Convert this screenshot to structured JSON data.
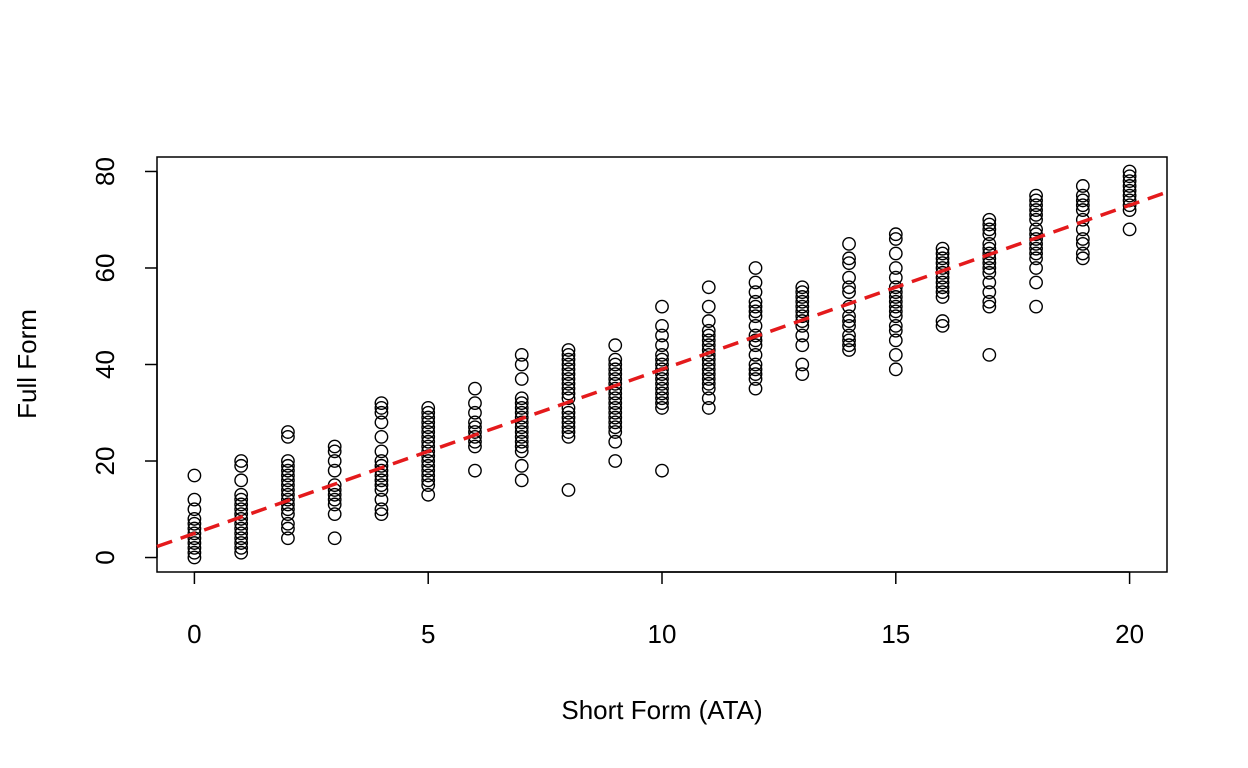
{
  "chart_data": {
    "type": "scatter",
    "title": "",
    "xlabel": "Short Form (ATA)",
    "ylabel": "Full Form",
    "xlim": [
      -0.8,
      20.8
    ],
    "ylim": [
      -3,
      83
    ],
    "x_ticks": [
      0,
      5,
      10,
      15,
      20
    ],
    "y_ticks": [
      0,
      20,
      40,
      60,
      80
    ],
    "x_tick_labels": [
      "0",
      "5",
      "10",
      "15",
      "20"
    ],
    "y_tick_labels": [
      "0",
      "20",
      "40",
      "60",
      "80"
    ],
    "grid": false,
    "legend": "none",
    "colors": {
      "points": "#000000",
      "fit_line": "#e41a1c",
      "frame": "#000000"
    },
    "fit_line": {
      "style": "dashed",
      "intercept": 5.0,
      "slope": 3.4
    },
    "series": [
      {
        "points": [
          [
            0,
            0
          ],
          [
            0,
            1
          ],
          [
            0,
            2
          ],
          [
            0,
            3
          ],
          [
            0,
            4
          ],
          [
            0,
            5
          ],
          [
            0,
            6
          ],
          [
            0,
            7
          ],
          [
            0,
            8
          ],
          [
            0,
            10
          ],
          [
            0,
            12
          ],
          [
            0,
            17
          ],
          [
            1,
            1
          ],
          [
            1,
            2
          ],
          [
            1,
            3
          ],
          [
            1,
            4
          ],
          [
            1,
            5
          ],
          [
            1,
            6
          ],
          [
            1,
            7
          ],
          [
            1,
            8
          ],
          [
            1,
            9
          ],
          [
            1,
            10
          ],
          [
            1,
            11
          ],
          [
            1,
            12
          ],
          [
            1,
            13
          ],
          [
            1,
            16
          ],
          [
            1,
            19
          ],
          [
            1,
            20
          ],
          [
            2,
            4
          ],
          [
            2,
            6
          ],
          [
            2,
            7
          ],
          [
            2,
            9
          ],
          [
            2,
            10
          ],
          [
            2,
            11
          ],
          [
            2,
            12
          ],
          [
            2,
            13
          ],
          [
            2,
            14
          ],
          [
            2,
            15
          ],
          [
            2,
            16
          ],
          [
            2,
            17
          ],
          [
            2,
            18
          ],
          [
            2,
            19
          ],
          [
            2,
            20
          ],
          [
            2,
            25
          ],
          [
            2,
            26
          ],
          [
            3,
            4
          ],
          [
            3,
            9
          ],
          [
            3,
            11
          ],
          [
            3,
            12
          ],
          [
            3,
            13
          ],
          [
            3,
            14
          ],
          [
            3,
            15
          ],
          [
            3,
            18
          ],
          [
            3,
            20
          ],
          [
            3,
            22
          ],
          [
            3,
            23
          ],
          [
            4,
            9
          ],
          [
            4,
            10
          ],
          [
            4,
            12
          ],
          [
            4,
            14
          ],
          [
            4,
            15
          ],
          [
            4,
            16
          ],
          [
            4,
            17
          ],
          [
            4,
            18
          ],
          [
            4,
            19
          ],
          [
            4,
            20
          ],
          [
            4,
            22
          ],
          [
            4,
            25
          ],
          [
            4,
            28
          ],
          [
            4,
            30
          ],
          [
            4,
            31
          ],
          [
            4,
            32
          ],
          [
            5,
            13
          ],
          [
            5,
            15
          ],
          [
            5,
            16
          ],
          [
            5,
            17
          ],
          [
            5,
            18
          ],
          [
            5,
            19
          ],
          [
            5,
            20
          ],
          [
            5,
            21
          ],
          [
            5,
            22
          ],
          [
            5,
            23
          ],
          [
            5,
            24
          ],
          [
            5,
            25
          ],
          [
            5,
            26
          ],
          [
            5,
            27
          ],
          [
            5,
            28
          ],
          [
            5,
            29
          ],
          [
            5,
            30
          ],
          [
            5,
            31
          ],
          [
            6,
            18
          ],
          [
            6,
            23
          ],
          [
            6,
            24
          ],
          [
            6,
            25
          ],
          [
            6,
            26
          ],
          [
            6,
            27
          ],
          [
            6,
            28
          ],
          [
            6,
            30
          ],
          [
            6,
            32
          ],
          [
            6,
            35
          ],
          [
            7,
            16
          ],
          [
            7,
            19
          ],
          [
            7,
            22
          ],
          [
            7,
            23
          ],
          [
            7,
            24
          ],
          [
            7,
            25
          ],
          [
            7,
            26
          ],
          [
            7,
            27
          ],
          [
            7,
            28
          ],
          [
            7,
            29
          ],
          [
            7,
            30
          ],
          [
            7,
            31
          ],
          [
            7,
            32
          ],
          [
            7,
            33
          ],
          [
            7,
            37
          ],
          [
            7,
            40
          ],
          [
            7,
            42
          ],
          [
            8,
            14
          ],
          [
            8,
            25
          ],
          [
            8,
            26
          ],
          [
            8,
            27
          ],
          [
            8,
            28
          ],
          [
            8,
            29
          ],
          [
            8,
            30
          ],
          [
            8,
            31
          ],
          [
            8,
            33
          ],
          [
            8,
            34
          ],
          [
            8,
            35
          ],
          [
            8,
            36
          ],
          [
            8,
            37
          ],
          [
            8,
            38
          ],
          [
            8,
            39
          ],
          [
            8,
            40
          ],
          [
            8,
            41
          ],
          [
            8,
            42
          ],
          [
            8,
            43
          ],
          [
            9,
            20
          ],
          [
            9,
            24
          ],
          [
            9,
            26
          ],
          [
            9,
            27
          ],
          [
            9,
            28
          ],
          [
            9,
            29
          ],
          [
            9,
            30
          ],
          [
            9,
            31
          ],
          [
            9,
            32
          ],
          [
            9,
            33
          ],
          [
            9,
            34
          ],
          [
            9,
            35
          ],
          [
            9,
            36
          ],
          [
            9,
            37
          ],
          [
            9,
            38
          ],
          [
            9,
            39
          ],
          [
            9,
            40
          ],
          [
            9,
            41
          ],
          [
            9,
            44
          ],
          [
            10,
            18
          ],
          [
            10,
            31
          ],
          [
            10,
            32
          ],
          [
            10,
            33
          ],
          [
            10,
            34
          ],
          [
            10,
            35
          ],
          [
            10,
            36
          ],
          [
            10,
            37
          ],
          [
            10,
            38
          ],
          [
            10,
            39
          ],
          [
            10,
            40
          ],
          [
            10,
            41
          ],
          [
            10,
            42
          ],
          [
            10,
            44
          ],
          [
            10,
            46
          ],
          [
            10,
            48
          ],
          [
            10,
            52
          ],
          [
            11,
            31
          ],
          [
            11,
            33
          ],
          [
            11,
            35
          ],
          [
            11,
            36
          ],
          [
            11,
            37
          ],
          [
            11,
            38
          ],
          [
            11,
            39
          ],
          [
            11,
            40
          ],
          [
            11,
            41
          ],
          [
            11,
            42
          ],
          [
            11,
            43
          ],
          [
            11,
            44
          ],
          [
            11,
            45
          ],
          [
            11,
            46
          ],
          [
            11,
            47
          ],
          [
            11,
            49
          ],
          [
            11,
            52
          ],
          [
            11,
            56
          ],
          [
            12,
            35
          ],
          [
            12,
            37
          ],
          [
            12,
            38
          ],
          [
            12,
            39
          ],
          [
            12,
            40
          ],
          [
            12,
            42
          ],
          [
            12,
            44
          ],
          [
            12,
            45
          ],
          [
            12,
            46
          ],
          [
            12,
            48
          ],
          [
            12,
            50
          ],
          [
            12,
            51
          ],
          [
            12,
            52
          ],
          [
            12,
            53
          ],
          [
            12,
            55
          ],
          [
            12,
            57
          ],
          [
            12,
            60
          ],
          [
            13,
            38
          ],
          [
            13,
            40
          ],
          [
            13,
            44
          ],
          [
            13,
            46
          ],
          [
            13,
            48
          ],
          [
            13,
            49
          ],
          [
            13,
            50
          ],
          [
            13,
            51
          ],
          [
            13,
            52
          ],
          [
            13,
            53
          ],
          [
            13,
            54
          ],
          [
            13,
            55
          ],
          [
            13,
            56
          ],
          [
            14,
            43
          ],
          [
            14,
            44
          ],
          [
            14,
            45
          ],
          [
            14,
            46
          ],
          [
            14,
            48
          ],
          [
            14,
            49
          ],
          [
            14,
            50
          ],
          [
            14,
            52
          ],
          [
            14,
            55
          ],
          [
            14,
            56
          ],
          [
            14,
            58
          ],
          [
            14,
            61
          ],
          [
            14,
            62
          ],
          [
            14,
            65
          ],
          [
            15,
            39
          ],
          [
            15,
            42
          ],
          [
            15,
            45
          ],
          [
            15,
            47
          ],
          [
            15,
            48
          ],
          [
            15,
            50
          ],
          [
            15,
            51
          ],
          [
            15,
            52
          ],
          [
            15,
            53
          ],
          [
            15,
            54
          ],
          [
            15,
            55
          ],
          [
            15,
            56
          ],
          [
            15,
            58
          ],
          [
            15,
            60
          ],
          [
            15,
            63
          ],
          [
            15,
            66
          ],
          [
            15,
            67
          ],
          [
            16,
            48
          ],
          [
            16,
            49
          ],
          [
            16,
            54
          ],
          [
            16,
            55
          ],
          [
            16,
            56
          ],
          [
            16,
            57
          ],
          [
            16,
            58
          ],
          [
            16,
            59
          ],
          [
            16,
            60
          ],
          [
            16,
            61
          ],
          [
            16,
            62
          ],
          [
            16,
            63
          ],
          [
            16,
            64
          ],
          [
            17,
            42
          ],
          [
            17,
            52
          ],
          [
            17,
            53
          ],
          [
            17,
            55
          ],
          [
            17,
            57
          ],
          [
            17,
            59
          ],
          [
            17,
            60
          ],
          [
            17,
            61
          ],
          [
            17,
            62
          ],
          [
            17,
            63
          ],
          [
            17,
            64
          ],
          [
            17,
            65
          ],
          [
            17,
            67
          ],
          [
            17,
            68
          ],
          [
            17,
            69
          ],
          [
            17,
            70
          ],
          [
            18,
            52
          ],
          [
            18,
            57
          ],
          [
            18,
            60
          ],
          [
            18,
            62
          ],
          [
            18,
            63
          ],
          [
            18,
            64
          ],
          [
            18,
            65
          ],
          [
            18,
            66
          ],
          [
            18,
            67
          ],
          [
            18,
            68
          ],
          [
            18,
            70
          ],
          [
            18,
            71
          ],
          [
            18,
            72
          ],
          [
            18,
            73
          ],
          [
            18,
            74
          ],
          [
            18,
            75
          ],
          [
            19,
            62
          ],
          [
            19,
            63
          ],
          [
            19,
            65
          ],
          [
            19,
            66
          ],
          [
            19,
            68
          ],
          [
            19,
            70
          ],
          [
            19,
            72
          ],
          [
            19,
            73
          ],
          [
            19,
            74
          ],
          [
            19,
            75
          ],
          [
            19,
            77
          ],
          [
            20,
            68
          ],
          [
            20,
            72
          ],
          [
            20,
            73
          ],
          [
            20,
            74
          ],
          [
            20,
            75
          ],
          [
            20,
            76
          ],
          [
            20,
            77
          ],
          [
            20,
            78
          ],
          [
            20,
            79
          ],
          [
            20,
            80
          ]
        ]
      }
    ]
  }
}
